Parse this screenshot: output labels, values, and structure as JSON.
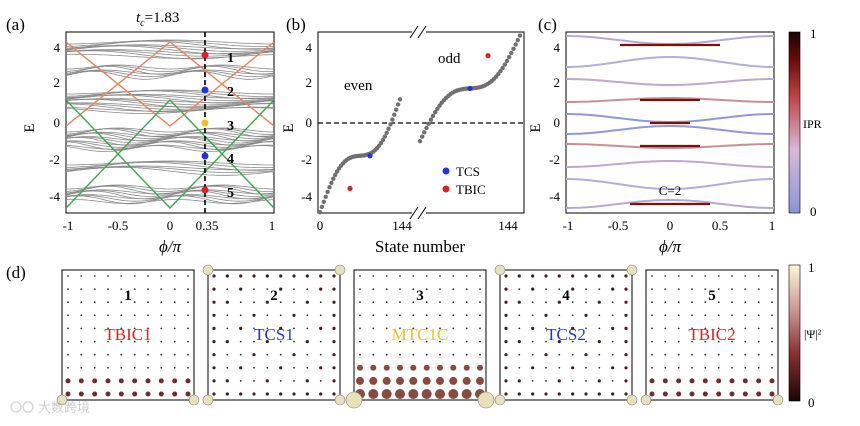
{
  "panel_labels": [
    "(a)",
    "(b)",
    "(c)",
    "(d)"
  ],
  "panel_a": {
    "title_tc": "t",
    "title_tc_sub": "c",
    "title_value": "=1.83",
    "ylabel": "E",
    "xlabel": "ϕ/π",
    "xticks": [
      "-1",
      "-0.5",
      "0",
      "0.35",
      "1"
    ],
    "yticks": [
      "4",
      "2",
      "0",
      "-2",
      "-4"
    ],
    "state_labels": [
      "1",
      "2",
      "3",
      "4",
      "5"
    ],
    "colors": {
      "bulk": "#888888",
      "edge_orange": "#e8845a",
      "edge_green": "#3aa84a",
      "red": "#e02020",
      "blue": "#2233dd",
      "yellow": "#f0c020"
    }
  },
  "panel_b": {
    "ylabel": "E",
    "xlabel": "State number",
    "xticks": [
      "0",
      "144",
      "144"
    ],
    "yticks": [
      "4",
      "2",
      "0",
      "-2",
      "-4"
    ],
    "group_labels": [
      "even",
      "odd"
    ],
    "legend": [
      {
        "label": "TCS",
        "color": "#2233dd"
      },
      {
        "label": "TBIC",
        "color": "#e02020"
      }
    ]
  },
  "panel_c": {
    "ylabel": "E",
    "xlabel": "ϕ/π",
    "xticks": [
      "-1",
      "-0.5",
      "0",
      "0.5",
      "1"
    ],
    "yticks": [
      "4",
      "2",
      "0",
      "-2",
      "-4"
    ],
    "annotation": "C=2",
    "colorbar": {
      "label": "IPR",
      "max": "1",
      "min": "0",
      "stops": [
        "#8c95d8",
        "#d8b8d8",
        "#c04040",
        "#6a0a0a",
        "#1a0505"
      ]
    }
  },
  "panel_d": {
    "boxes": [
      {
        "number": "1",
        "name": "TBIC1",
        "color": "#e02020"
      },
      {
        "number": "2",
        "name": "TCS1",
        "color": "#2233dd"
      },
      {
        "number": "3",
        "name": "MTC1C",
        "color": "#f0c020"
      },
      {
        "number": "4",
        "name": "TCS2",
        "color": "#2233dd"
      },
      {
        "number": "5",
        "name": "TBIC2",
        "color": "#e02020"
      }
    ],
    "colorbar": {
      "label": "|Ψ|²",
      "max": "1",
      "min": "0"
    }
  },
  "watermark": "大数跨境"
}
